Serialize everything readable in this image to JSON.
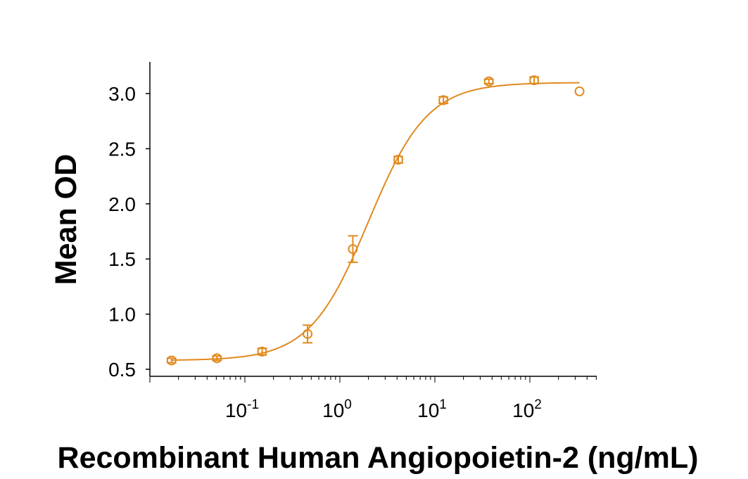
{
  "chart_data": {
    "type": "scatter",
    "title": "",
    "xlabel": "Recombinant Human Angiopoietin-2 (ng/mL)",
    "ylabel": "Mean OD",
    "x_scale": "log",
    "xlim": [
      0.01,
      500
    ],
    "ylim": [
      0.45,
      3.3
    ],
    "x_ticks": [
      0.1,
      1,
      10,
      100
    ],
    "x_tick_labels": [
      {
        "base": "10",
        "exp": "-1"
      },
      {
        "base": "10",
        "exp": "0"
      },
      {
        "base": "10",
        "exp": "1"
      },
      {
        "base": "10",
        "exp": "2"
      }
    ],
    "y_ticks": [
      0.5,
      1.0,
      1.5,
      2.0,
      2.5,
      3.0
    ],
    "y_tick_labels": [
      "0.5",
      "1.0",
      "1.5",
      "2.0",
      "2.5",
      "3.0"
    ],
    "grid": false,
    "color": "#E08A1E",
    "marker": "open-circle",
    "points": [
      {
        "x": 0.0169,
        "y": 0.58,
        "err": 0.02
      },
      {
        "x": 0.0508,
        "y": 0.6,
        "err": 0.02
      },
      {
        "x": 0.152,
        "y": 0.66,
        "err": 0.03
      },
      {
        "x": 0.457,
        "y": 0.82,
        "err": 0.08
      },
      {
        "x": 1.37,
        "y": 1.59,
        "err": 0.12
      },
      {
        "x": 4.12,
        "y": 2.4,
        "err": 0.03
      },
      {
        "x": 12.3,
        "y": 2.94,
        "err": 0.03
      },
      {
        "x": 37.0,
        "y": 3.11,
        "err": 0.02
      },
      {
        "x": 111,
        "y": 3.12,
        "err": 0.03
      },
      {
        "x": 333,
        "y": 3.02,
        "err": 0
      }
    ],
    "fit": {
      "model": "4PL",
      "bottom": 0.58,
      "top": 3.1,
      "ec50": 2.0,
      "hill": 1.4,
      "x_range": [
        0.0169,
        333
      ]
    }
  }
}
